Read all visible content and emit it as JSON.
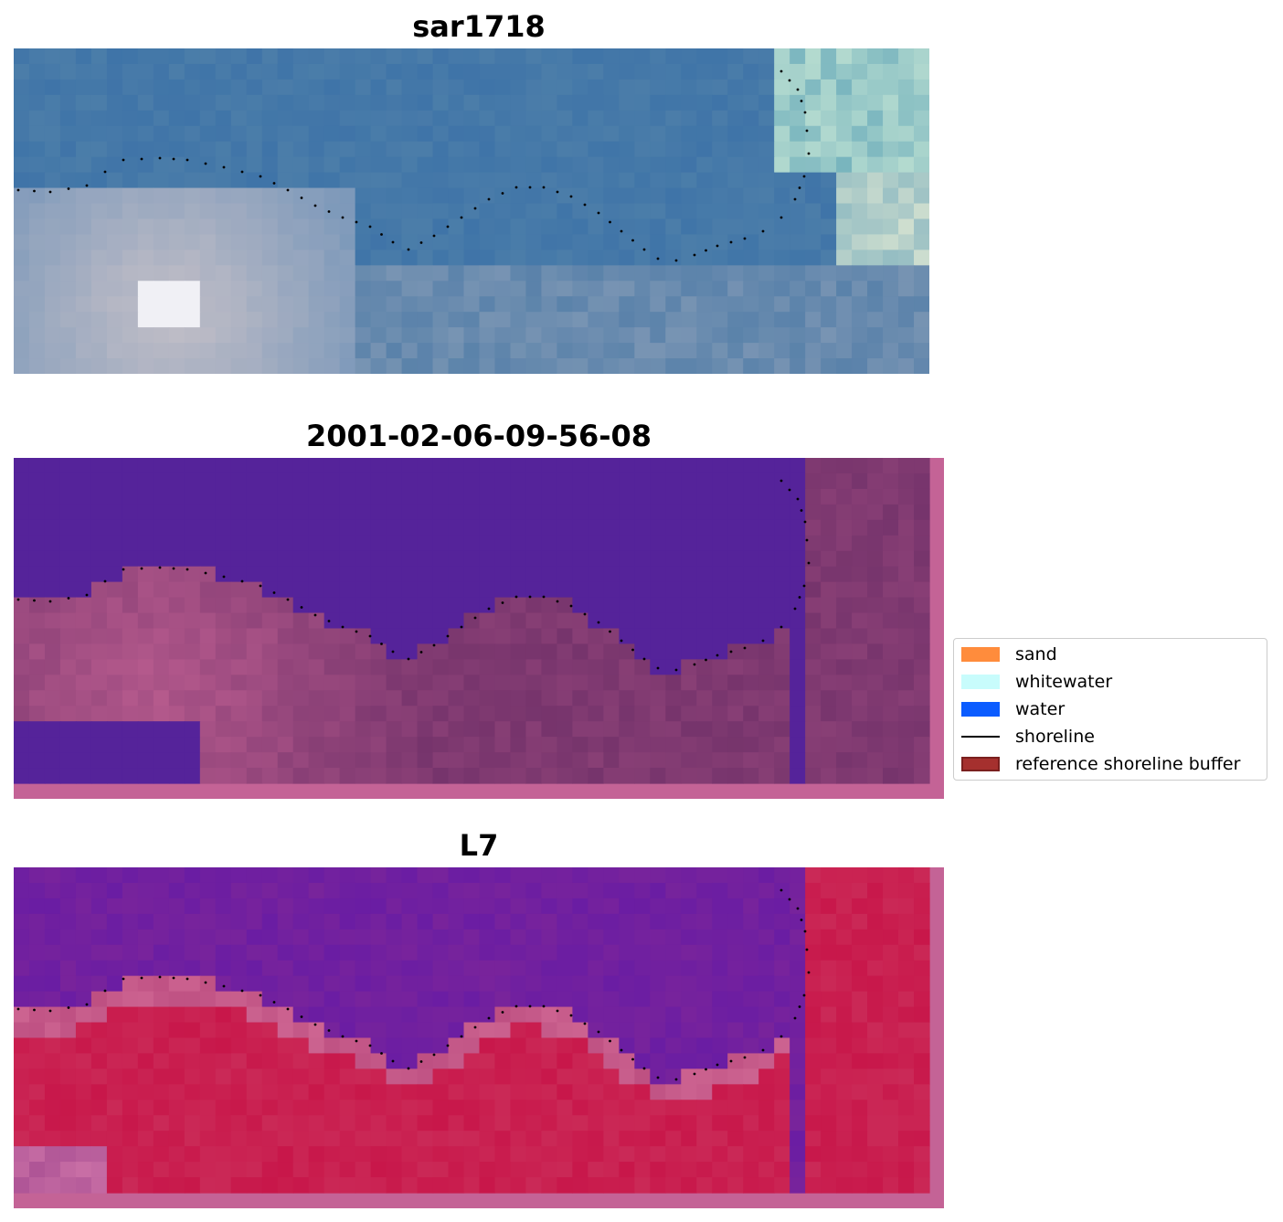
{
  "panels": [
    {
      "title": "sar1718",
      "kind": "rgb"
    },
    {
      "title": "2001-02-06-09-56-08",
      "kind": "classified"
    },
    {
      "title": "L7",
      "kind": "index"
    }
  ],
  "legend": {
    "items": [
      {
        "label": "sand",
        "color": "#ff8c3c",
        "type": "patch"
      },
      {
        "label": "whitewater",
        "color": "#c8fcfc",
        "type": "patch"
      },
      {
        "label": "water",
        "color": "#0b5cff",
        "type": "patch"
      },
      {
        "label": "shoreline",
        "color": "#000000",
        "type": "line"
      },
      {
        "label": "reference shoreline buffer",
        "color": "#a5302e",
        "type": "patch",
        "edge": "#7a1f1e"
      }
    ]
  },
  "colors": {
    "water_class": "#55239a",
    "buffer_overlay": "#c46396",
    "rgb_water": "#3f74a8",
    "rgb_sand": "#c9c2c8",
    "index_water": "#6a1da3",
    "index_land": "#c8174a"
  }
}
